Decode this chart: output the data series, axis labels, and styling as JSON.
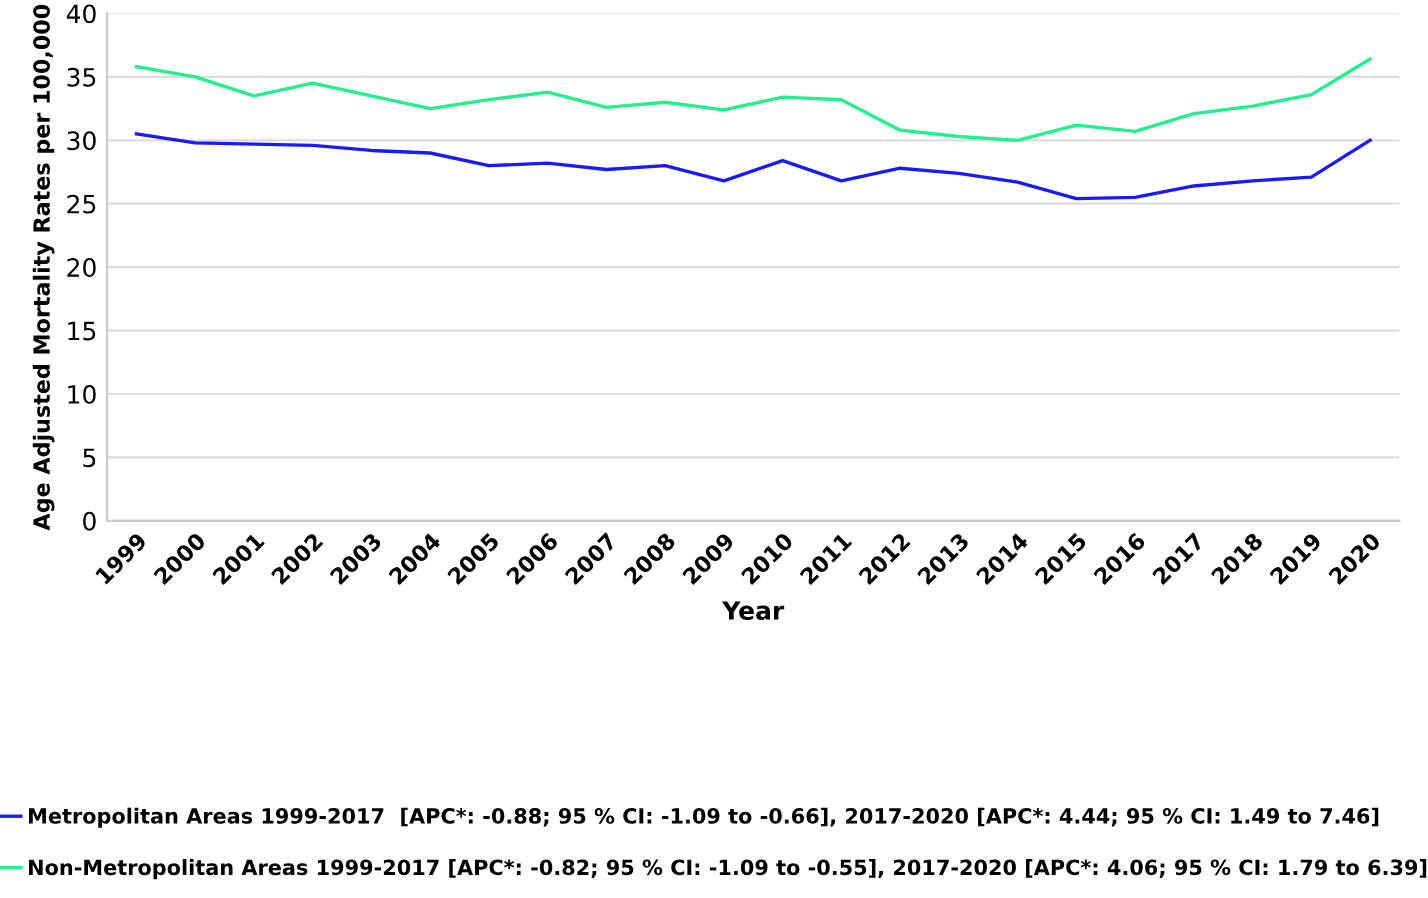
{
  "chart_data": {
    "type": "line",
    "xlabel": "Year",
    "ylabel": "Age Adjusted Mortality Rates per 100,000",
    "categories": [
      "1999",
      "2000",
      "2001",
      "2002",
      "2003",
      "2004",
      "2005",
      "2006",
      "2007",
      "2008",
      "2009",
      "2010",
      "2011",
      "2012",
      "2013",
      "2014",
      "2015",
      "2016",
      "2017",
      "2018",
      "2019",
      "2020"
    ],
    "series": [
      {
        "name": "Metropolitan Areas 1999-2017  [APC*: -0.88; 95 % CI: -1.09 to -0.66], 2017-2020 [APC*: 4.44; 95 % CI: 1.49 to 7.46]",
        "color": "#1a1aff",
        "values": [
          30.5,
          29.8,
          29.7,
          29.6,
          29.2,
          29.0,
          28.0,
          28.2,
          27.7,
          28.0,
          26.8,
          28.4,
          26.8,
          27.8,
          27.4,
          26.7,
          25.4,
          25.5,
          26.4,
          26.8,
          27.1,
          30.0
        ]
      },
      {
        "name": "Non-Metropolitan Areas 1999-2017 [APC*: -0.82; 95 % CI: -1.09 to -0.55], 2017-2020 [APC*: 4.06; 95 % CI: 1.79 to 6.39]",
        "color": "#22f08a",
        "values": [
          35.8,
          35.0,
          33.5,
          34.5,
          33.5,
          32.5,
          33.2,
          33.8,
          32.6,
          33.0,
          32.4,
          33.4,
          33.2,
          30.8,
          30.3,
          30.0,
          31.2,
          30.7,
          32.1,
          32.7,
          33.6,
          36.4
        ]
      }
    ],
    "ylim": [
      0,
      40
    ],
    "yticks": [
      0,
      5,
      10,
      15,
      20,
      25,
      30,
      35,
      40
    ],
    "grid": "y",
    "legend": "bottom",
    "marker": "none",
    "line_style": "solid"
  }
}
